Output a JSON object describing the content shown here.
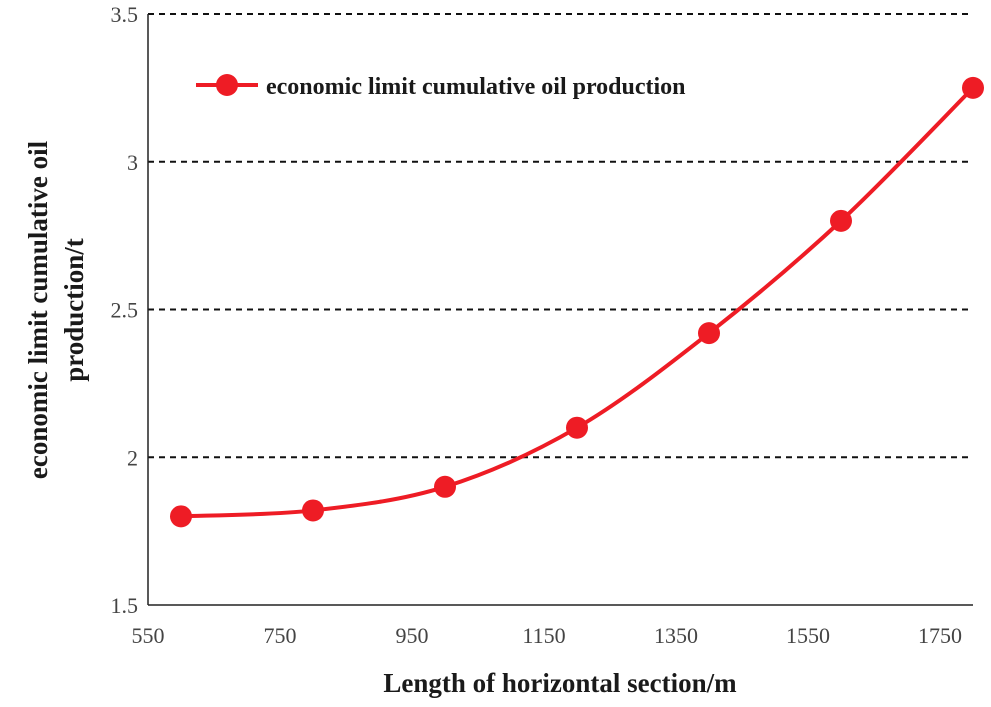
{
  "chart_data": {
    "type": "line",
    "title": "",
    "xlabel": "Length of horizontal section/m",
    "ylabel_lines": [
      "economic limit  cumulative oil",
      "production/t"
    ],
    "x_ticks": [
      "550",
      "750",
      "950",
      "1150",
      "1350",
      "1550",
      "1750"
    ],
    "y_ticks": [
      "1.5",
      "2",
      "2.5",
      "3",
      "3.5"
    ],
    "xlim": [
      550,
      1750
    ],
    "ylim": [
      1.5,
      3.5
    ],
    "grid": "horizontal dashed",
    "legend_position": "top-left",
    "series": [
      {
        "name": "economic limit cumulative oil production",
        "color": "#ee1c25",
        "x": [
          600,
          800,
          1000,
          1200,
          1400,
          1600,
          1800
        ],
        "values": [
          1.8,
          1.82,
          1.9,
          2.1,
          2.42,
          2.8,
          3.25
        ]
      }
    ]
  }
}
